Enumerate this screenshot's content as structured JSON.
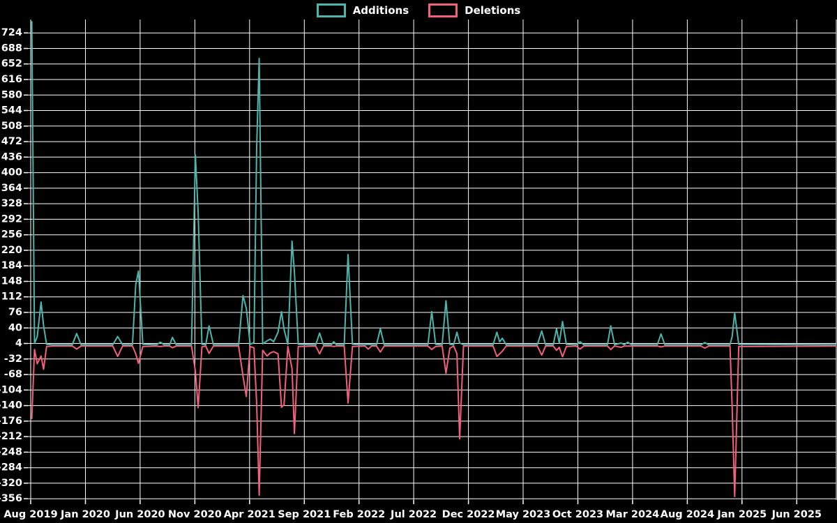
{
  "chart_data": {
    "type": "line",
    "title": "",
    "background": "#000000",
    "grid": true,
    "grid_color": "#ffffff",
    "legend": {
      "position": "top-center",
      "entries": [
        "Additions",
        "Deletions"
      ]
    },
    "series": [
      {
        "name": "Additions",
        "color": "#4db6ac"
      },
      {
        "name": "Deletions",
        "color": "#f2617a"
      }
    ],
    "x_axis": {
      "labels": [
        "Aug 2019",
        "Jan 2020",
        "Jun 2020",
        "Nov 2020",
        "Apr 2021",
        "Sep 2021",
        "Feb 2022",
        "Jul 2022",
        "Dec 2022",
        "May 2023",
        "Oct 2023",
        "Mar 2024",
        "Aug 2024",
        "Jan 2025",
        "Jun 2025"
      ],
      "months_per_label": 5,
      "total_months_drawn": 73.6
    },
    "y_axis": {
      "ticks": [
        724,
        688,
        652,
        616,
        580,
        544,
        508,
        472,
        436,
        400,
        364,
        328,
        292,
        256,
        220,
        184,
        148,
        112,
        76,
        40,
        4,
        -32,
        -68,
        -104,
        -140,
        -176,
        -212,
        -248,
        -284,
        -320,
        -356
      ],
      "tick_step": 36,
      "min": -360,
      "max": 754
    },
    "points_format": [
      "months_since_aug_2019",
      "additions",
      "deletions"
    ],
    "points": [
      [
        0.1,
        750,
        -170
      ],
      [
        0.35,
        4,
        -10
      ],
      [
        0.6,
        20,
        -43
      ],
      [
        0.95,
        100,
        -25
      ],
      [
        1.18,
        45,
        -56
      ],
      [
        1.45,
        2,
        -3
      ],
      [
        2.0,
        1,
        -2
      ],
      [
        3.8,
        1,
        -2
      ],
      [
        4.2,
        27,
        -9
      ],
      [
        4.6,
        1,
        -2
      ],
      [
        7.5,
        1,
        -2
      ],
      [
        7.95,
        20,
        -26
      ],
      [
        8.4,
        1,
        -2
      ],
      [
        9.3,
        1,
        -2
      ],
      [
        9.6,
        140,
        -20
      ],
      [
        9.85,
        172,
        -42
      ],
      [
        10.25,
        2,
        -3
      ],
      [
        11.5,
        1,
        -2
      ],
      [
        11.85,
        7,
        -3
      ],
      [
        12.2,
        1,
        -2
      ],
      [
        12.7,
        1,
        -2
      ],
      [
        12.95,
        18,
        -6
      ],
      [
        13.3,
        1,
        -2
      ],
      [
        14.7,
        1,
        -2
      ],
      [
        15.05,
        441,
        -60
      ],
      [
        15.3,
        307,
        -145
      ],
      [
        15.65,
        2,
        -4
      ],
      [
        16.0,
        1,
        -2
      ],
      [
        16.3,
        45,
        -19
      ],
      [
        16.7,
        1,
        -2
      ],
      [
        19.0,
        1,
        -2
      ],
      [
        19.4,
        115,
        -72
      ],
      [
        19.7,
        86,
        -119
      ],
      [
        20.05,
        2,
        -3
      ],
      [
        20.4,
        6,
        -6
      ],
      [
        20.65,
        460,
        -136
      ],
      [
        20.88,
        665,
        -348
      ],
      [
        21.2,
        3,
        -12
      ],
      [
        21.6,
        10,
        -25
      ],
      [
        21.9,
        14,
        -18
      ],
      [
        22.2,
        8,
        -15
      ],
      [
        22.6,
        30,
        -20
      ],
      [
        22.92,
        78,
        -144
      ],
      [
        23.15,
        37,
        -138
      ],
      [
        23.5,
        2,
        -3
      ],
      [
        23.88,
        241,
        -55
      ],
      [
        24.1,
        170,
        -205
      ],
      [
        24.45,
        2,
        -3
      ],
      [
        26.05,
        1,
        -2
      ],
      [
        26.4,
        28,
        -20
      ],
      [
        26.75,
        1,
        -2
      ],
      [
        27.45,
        1,
        -2
      ],
      [
        27.7,
        8,
        -3
      ],
      [
        27.95,
        1,
        -2
      ],
      [
        28.65,
        1,
        -2
      ],
      [
        29.0,
        210,
        -134
      ],
      [
        29.4,
        2,
        -3
      ],
      [
        30.55,
        1,
        -2
      ],
      [
        30.85,
        2,
        -9
      ],
      [
        31.15,
        1,
        -2
      ],
      [
        31.6,
        1,
        -2
      ],
      [
        31.95,
        38,
        -16
      ],
      [
        32.3,
        1,
        -2
      ],
      [
        36.3,
        1,
        -2
      ],
      [
        36.65,
        78,
        -10
      ],
      [
        37.0,
        2,
        -3
      ],
      [
        37.6,
        1,
        -2
      ],
      [
        37.95,
        103,
        -65
      ],
      [
        38.3,
        2,
        -7
      ],
      [
        38.65,
        1,
        -2
      ],
      [
        38.95,
        30,
        -20
      ],
      [
        39.2,
        5,
        -217
      ],
      [
        39.55,
        1,
        -2
      ],
      [
        42.25,
        1,
        -2
      ],
      [
        42.6,
        30,
        -26
      ],
      [
        42.85,
        8,
        -20
      ],
      [
        43.1,
        16,
        -14
      ],
      [
        43.45,
        1,
        -2
      ],
      [
        46.3,
        1,
        -2
      ],
      [
        46.7,
        33,
        -23
      ],
      [
        47.05,
        1,
        -2
      ],
      [
        47.75,
        1,
        -2
      ],
      [
        48.05,
        38,
        -12
      ],
      [
        48.3,
        5,
        -5
      ],
      [
        48.6,
        55,
        -27
      ],
      [
        48.95,
        2,
        -3
      ],
      [
        49.85,
        1,
        -2
      ],
      [
        50.2,
        8,
        -9
      ],
      [
        50.55,
        1,
        -2
      ],
      [
        52.7,
        1,
        -2
      ],
      [
        53.0,
        45,
        -10
      ],
      [
        53.35,
        1,
        -2
      ],
      [
        53.95,
        5,
        -5
      ],
      [
        54.25,
        1,
        -2
      ],
      [
        54.55,
        7,
        -2
      ],
      [
        54.9,
        1,
        -2
      ],
      [
        57.25,
        1,
        -2
      ],
      [
        57.6,
        26,
        -4
      ],
      [
        57.95,
        1,
        -2
      ],
      [
        61.25,
        1,
        -2
      ],
      [
        61.6,
        6,
        -7
      ],
      [
        61.95,
        1,
        -2
      ],
      [
        63.9,
        1,
        -2
      ],
      [
        64.1,
        20,
        -144
      ],
      [
        64.33,
        75,
        -351
      ],
      [
        64.7,
        2,
        -3
      ],
      [
        73.6,
        1,
        -2
      ]
    ]
  }
}
